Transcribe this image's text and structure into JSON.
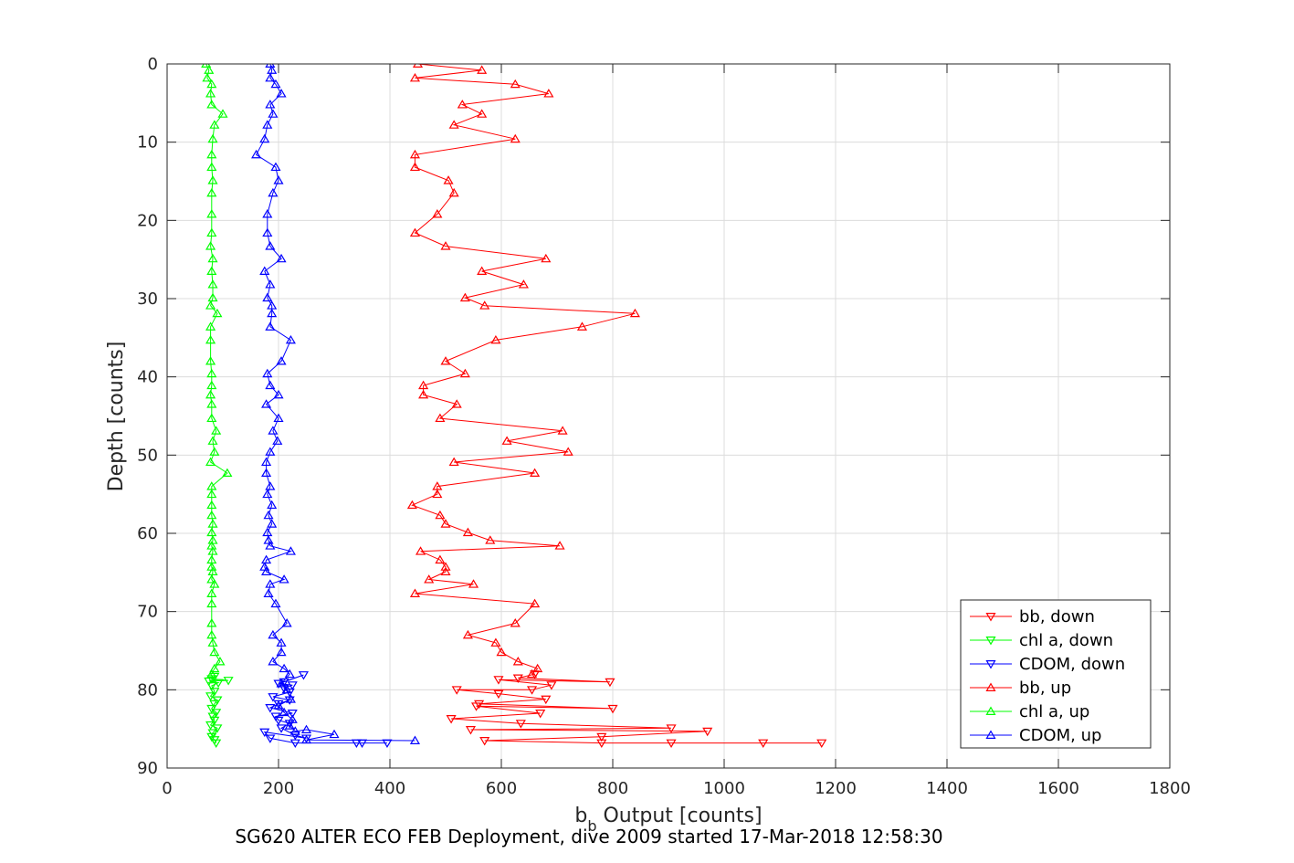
{
  "caption": "SG620 ALTER ECO FEB Deployment, dive 2009 started 17-Mar-2018 12:58:30",
  "chart_data": {
    "type": "line",
    "xlabel_main": "b",
    "xlabel_sub": "b",
    "xlabel_rest": " Output [counts]",
    "ylabel": "Depth [counts]",
    "xlim": [
      0,
      1800
    ],
    "ylim": [
      0,
      90
    ],
    "y_reversed": true,
    "grid": true,
    "legend_position": "bottom-right",
    "xticks": [
      0,
      200,
      400,
      600,
      800,
      1000,
      1200,
      1400,
      1600,
      1800
    ],
    "yticks": [
      0,
      10,
      20,
      30,
      40,
      50,
      60,
      70,
      80,
      90
    ],
    "series": [
      {
        "name": "bb, down",
        "color": "#ff0000",
        "marker": "triangle-down",
        "points": [
          [
            1175,
            86.8
          ],
          [
            1070,
            86.8
          ],
          [
            905,
            86.8
          ],
          [
            780,
            86.8
          ],
          [
            570,
            86.5
          ],
          [
            780,
            86.0
          ],
          [
            970,
            85.3
          ],
          [
            545,
            85.1
          ],
          [
            905,
            84.9
          ],
          [
            635,
            84.3
          ],
          [
            510,
            83.7
          ],
          [
            670,
            83.0
          ],
          [
            555,
            82.1
          ],
          [
            800,
            82.4
          ],
          [
            560,
            81.8
          ],
          [
            680,
            81.2
          ],
          [
            595,
            80.5
          ],
          [
            520,
            80.0
          ],
          [
            655,
            80.0
          ],
          [
            690,
            79.4
          ],
          [
            595,
            78.7
          ],
          [
            795,
            79.0
          ],
          [
            630,
            78.5
          ],
          [
            660,
            78.0
          ]
        ]
      },
      {
        "name": "chl a, down",
        "color": "#00ff00",
        "marker": "triangle-down",
        "points": [
          [
            88,
            86.8
          ],
          [
            85,
            86.4
          ],
          [
            80,
            86.0
          ],
          [
            82,
            85.5
          ],
          [
            90,
            84.9
          ],
          [
            78,
            84.5
          ],
          [
            85,
            83.9
          ],
          [
            82,
            83.4
          ],
          [
            88,
            82.9
          ],
          [
            80,
            82.4
          ],
          [
            85,
            81.8
          ],
          [
            90,
            81.3
          ],
          [
            78,
            80.8
          ],
          [
            85,
            80.2
          ],
          [
            80,
            79.5
          ],
          [
            92,
            79.1
          ],
          [
            75,
            78.9
          ],
          [
            110,
            78.8
          ],
          [
            80,
            78.6
          ],
          [
            85,
            78.3
          ]
        ]
      },
      {
        "name": "CDOM, down",
        "color": "#0000ff",
        "marker": "triangle-down",
        "points": [
          [
            395,
            86.8
          ],
          [
            350,
            86.8
          ],
          [
            340,
            86.8
          ],
          [
            230,
            86.8
          ],
          [
            185,
            86.2
          ],
          [
            175,
            85.4
          ],
          [
            250,
            86.2
          ],
          [
            230,
            85.8
          ],
          [
            205,
            84.9
          ],
          [
            220,
            84.3
          ],
          [
            200,
            83.9
          ],
          [
            195,
            83.4
          ],
          [
            225,
            83.0
          ],
          [
            185,
            82.3
          ],
          [
            200,
            81.8
          ],
          [
            220,
            81.3
          ],
          [
            190,
            80.9
          ],
          [
            220,
            80.3
          ],
          [
            210,
            79.8
          ],
          [
            225,
            79.4
          ],
          [
            200,
            79.2
          ],
          [
            245,
            78.1
          ],
          [
            210,
            79.0
          ]
        ]
      },
      {
        "name": "bb, up",
        "color": "#ff0000",
        "marker": "triangle-up",
        "points": [
          [
            450,
            0.0
          ],
          [
            565,
            0.8
          ],
          [
            445,
            1.8
          ],
          [
            625,
            2.6
          ],
          [
            685,
            3.8
          ],
          [
            530,
            5.2
          ],
          [
            565,
            6.4
          ],
          [
            515,
            7.8
          ],
          [
            625,
            9.6
          ],
          [
            445,
            11.6
          ],
          [
            445,
            13.2
          ],
          [
            505,
            14.9
          ],
          [
            515,
            16.5
          ],
          [
            485,
            19.2
          ],
          [
            445,
            21.6
          ],
          [
            500,
            23.3
          ],
          [
            680,
            24.9
          ],
          [
            565,
            26.5
          ],
          [
            640,
            28.2
          ],
          [
            535,
            29.9
          ],
          [
            570,
            30.9
          ],
          [
            840,
            31.9
          ],
          [
            745,
            33.6
          ],
          [
            590,
            35.3
          ],
          [
            500,
            38.0
          ],
          [
            535,
            39.6
          ],
          [
            460,
            41.1
          ],
          [
            460,
            42.3
          ],
          [
            520,
            43.5
          ],
          [
            490,
            45.3
          ],
          [
            710,
            46.9
          ],
          [
            610,
            48.2
          ],
          [
            720,
            49.6
          ],
          [
            515,
            50.9
          ],
          [
            660,
            52.3
          ],
          [
            485,
            54.0
          ],
          [
            485,
            55.0
          ],
          [
            440,
            56.4
          ],
          [
            490,
            57.7
          ],
          [
            500,
            58.8
          ],
          [
            540,
            59.9
          ],
          [
            580,
            60.9
          ],
          [
            705,
            61.6
          ],
          [
            455,
            62.3
          ],
          [
            490,
            63.4
          ],
          [
            500,
            64.3
          ],
          [
            500,
            64.9
          ],
          [
            470,
            65.9
          ],
          [
            550,
            66.5
          ],
          [
            445,
            67.7
          ],
          [
            660,
            69.0
          ],
          [
            625,
            71.5
          ],
          [
            540,
            73.0
          ],
          [
            590,
            74.0
          ],
          [
            600,
            75.2
          ],
          [
            630,
            76.4
          ],
          [
            665,
            77.3
          ],
          [
            655,
            78.0
          ]
        ]
      },
      {
        "name": "chl a, up",
        "color": "#00ff00",
        "marker": "triangle-up",
        "points": [
          [
            70,
            0.0
          ],
          [
            75,
            0.8
          ],
          [
            72,
            1.8
          ],
          [
            80,
            2.6
          ],
          [
            78,
            3.8
          ],
          [
            80,
            5.2
          ],
          [
            100,
            6.4
          ],
          [
            85,
            7.8
          ],
          [
            82,
            9.6
          ],
          [
            80,
            11.6
          ],
          [
            80,
            13.2
          ],
          [
            82,
            14.9
          ],
          [
            80,
            16.5
          ],
          [
            80,
            19.2
          ],
          [
            80,
            21.6
          ],
          [
            78,
            23.3
          ],
          [
            82,
            24.9
          ],
          [
            80,
            26.5
          ],
          [
            82,
            28.2
          ],
          [
            82,
            29.9
          ],
          [
            78,
            30.9
          ],
          [
            90,
            31.9
          ],
          [
            78,
            33.6
          ],
          [
            78,
            35.3
          ],
          [
            78,
            38.0
          ],
          [
            80,
            39.6
          ],
          [
            80,
            41.1
          ],
          [
            78,
            42.3
          ],
          [
            80,
            43.5
          ],
          [
            80,
            45.3
          ],
          [
            88,
            46.9
          ],
          [
            82,
            48.2
          ],
          [
            85,
            49.6
          ],
          [
            78,
            50.9
          ],
          [
            108,
            52.3
          ],
          [
            80,
            54.0
          ],
          [
            80,
            55.0
          ],
          [
            80,
            56.4
          ],
          [
            80,
            57.7
          ],
          [
            82,
            58.8
          ],
          [
            80,
            59.9
          ],
          [
            82,
            60.9
          ],
          [
            80,
            61.6
          ],
          [
            82,
            62.3
          ],
          [
            80,
            63.4
          ],
          [
            80,
            64.3
          ],
          [
            82,
            64.9
          ],
          [
            80,
            65.9
          ],
          [
            85,
            66.5
          ],
          [
            80,
            67.7
          ],
          [
            80,
            69.0
          ],
          [
            80,
            71.5
          ],
          [
            80,
            73.0
          ],
          [
            82,
            74.0
          ],
          [
            85,
            75.2
          ],
          [
            95,
            76.4
          ],
          [
            85,
            77.3
          ],
          [
            80,
            78.0
          ]
        ]
      },
      {
        "name": "CDOM, up",
        "color": "#0000ff",
        "marker": "triangle-up",
        "points": [
          [
            185,
            0.0
          ],
          [
            188,
            0.8
          ],
          [
            185,
            1.8
          ],
          [
            195,
            2.6
          ],
          [
            205,
            3.8
          ],
          [
            185,
            5.2
          ],
          [
            190,
            6.4
          ],
          [
            180,
            7.8
          ],
          [
            175,
            9.6
          ],
          [
            160,
            11.6
          ],
          [
            195,
            13.2
          ],
          [
            200,
            14.9
          ],
          [
            190,
            16.5
          ],
          [
            180,
            19.2
          ],
          [
            180,
            21.6
          ],
          [
            185,
            23.3
          ],
          [
            205,
            24.9
          ],
          [
            175,
            26.5
          ],
          [
            185,
            28.2
          ],
          [
            180,
            29.9
          ],
          [
            188,
            30.9
          ],
          [
            188,
            31.9
          ],
          [
            185,
            33.6
          ],
          [
            222,
            35.3
          ],
          [
            205,
            38.0
          ],
          [
            180,
            39.6
          ],
          [
            185,
            41.1
          ],
          [
            200,
            42.3
          ],
          [
            178,
            43.5
          ],
          [
            200,
            45.3
          ],
          [
            190,
            46.9
          ],
          [
            198,
            48.2
          ],
          [
            185,
            49.6
          ],
          [
            178,
            50.9
          ],
          [
            178,
            52.3
          ],
          [
            185,
            54.0
          ],
          [
            180,
            55.0
          ],
          [
            188,
            56.4
          ],
          [
            182,
            57.7
          ],
          [
            188,
            58.8
          ],
          [
            180,
            59.9
          ],
          [
            182,
            60.9
          ],
          [
            185,
            61.6
          ],
          [
            222,
            62.3
          ],
          [
            178,
            63.4
          ],
          [
            175,
            64.3
          ],
          [
            178,
            64.9
          ],
          [
            210,
            65.9
          ],
          [
            185,
            66.5
          ],
          [
            182,
            67.7
          ],
          [
            195,
            69.0
          ],
          [
            215,
            71.5
          ],
          [
            190,
            73.0
          ],
          [
            205,
            74.0
          ],
          [
            205,
            75.2
          ],
          [
            190,
            76.4
          ],
          [
            210,
            77.3
          ],
          [
            220,
            78.0
          ],
          [
            205,
            79.2
          ],
          [
            215,
            80.0
          ],
          [
            222,
            81.2
          ],
          [
            200,
            82.0
          ],
          [
            210,
            82.9
          ],
          [
            225,
            83.8
          ],
          [
            220,
            84.6
          ],
          [
            230,
            85.3
          ],
          [
            250,
            85.1
          ],
          [
            300,
            85.7
          ],
          [
            250,
            86.4
          ],
          [
            445,
            86.5
          ]
        ]
      }
    ]
  }
}
